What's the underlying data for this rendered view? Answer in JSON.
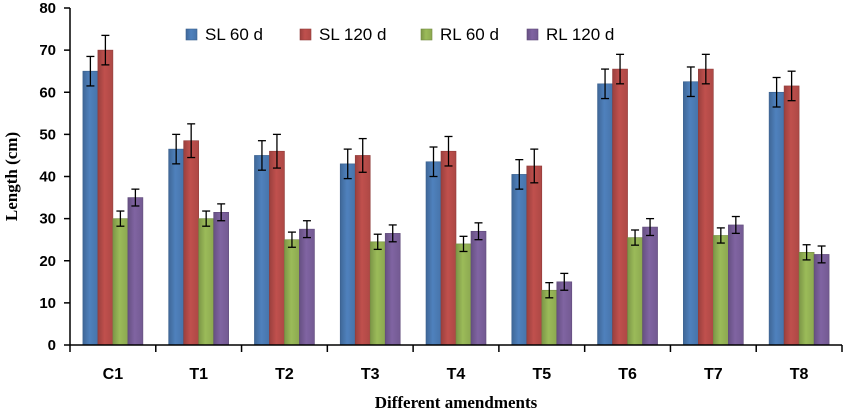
{
  "chart_data": {
    "type": "bar",
    "title": "",
    "xlabel": "Different amendments",
    "ylabel": "Length (cm)",
    "ylim": [
      0,
      80
    ],
    "yticks": [
      0,
      10,
      20,
      30,
      40,
      50,
      60,
      70,
      80
    ],
    "categories": [
      "C1",
      "T1",
      "T2",
      "T3",
      "T4",
      "T5",
      "T6",
      "T7",
      "T8"
    ],
    "legend_position": "top-center",
    "series": [
      {
        "name": "SL 60 d",
        "color": "#4f81bd",
        "values": [
          65,
          46.5,
          45,
          43,
          43.5,
          40.5,
          62,
          62.5,
          60
        ],
        "errors": [
          3.5,
          3.5,
          3.5,
          3.5,
          3.5,
          3.5,
          3.5,
          3.5,
          3.5
        ]
      },
      {
        "name": "SL 120 d",
        "color": "#c0504d",
        "values": [
          70,
          48.5,
          46,
          45,
          46,
          42.5,
          65.5,
          65.5,
          61.5
        ],
        "errors": [
          3.5,
          4,
          4,
          4,
          3.5,
          4,
          3.5,
          3.5,
          3.5
        ]
      },
      {
        "name": "RL 60 d",
        "color": "#9bbb59",
        "values": [
          30,
          30,
          25,
          24.5,
          24,
          13,
          25.5,
          26,
          22
        ],
        "errors": [
          1.8,
          1.8,
          1.8,
          1.8,
          1.8,
          1.8,
          1.8,
          1.8,
          1.8
        ]
      },
      {
        "name": "RL 120 d",
        "color": "#8064a2",
        "values": [
          35,
          31.5,
          27.5,
          26.5,
          27,
          15,
          28,
          28.5,
          21.5
        ],
        "errors": [
          2,
          2,
          2,
          2,
          2,
          2,
          2,
          2,
          2
        ]
      }
    ]
  }
}
